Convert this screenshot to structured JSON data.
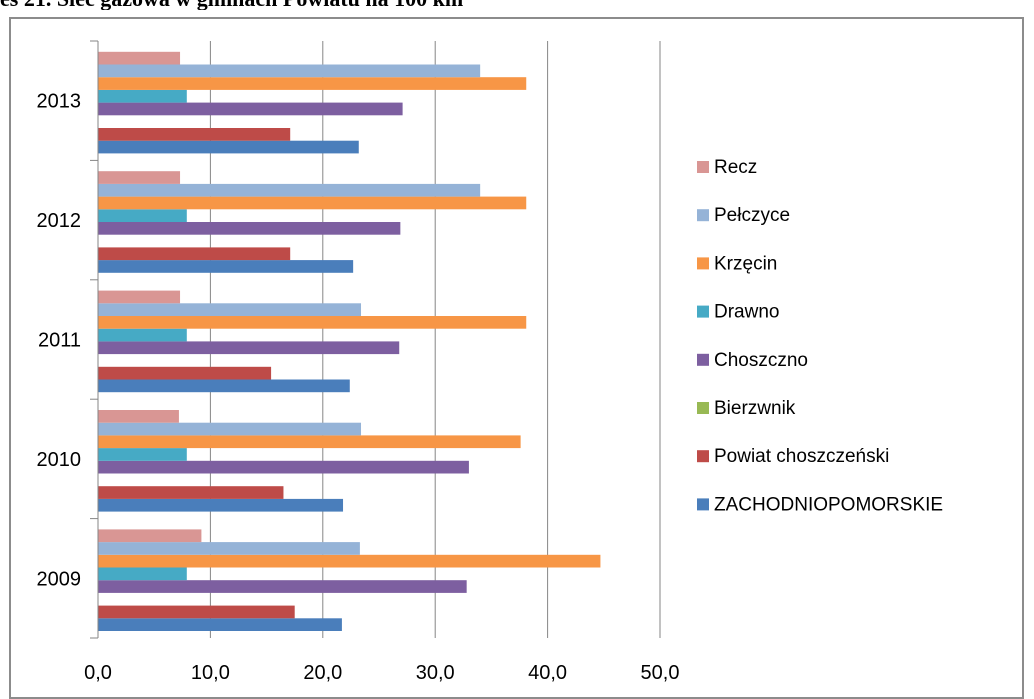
{
  "page_title": "es 21. Sieć gazowa w gminach Powiatu na 100 km",
  "chart_data": {
    "type": "bar",
    "orientation": "horizontal",
    "title": "es 21. Sieć gazowa w gminach Powiatu na 100 km",
    "categories": [
      "2009",
      "2010",
      "2011",
      "2012",
      "2013"
    ],
    "xlim": [
      0,
      50
    ],
    "x_ticks": [
      "0,0",
      "10,0",
      "20,0",
      "30,0",
      "40,0",
      "50,0"
    ],
    "grid": "vertical",
    "legend_position": "right",
    "series": [
      {
        "name": "ZACHODNIOPOMORSKIE",
        "color": "#4a7ebb",
        "values": [
          21.7,
          21.8,
          22.4,
          22.7,
          23.2
        ]
      },
      {
        "name": "Powiat choszczeński",
        "color": "#be4b48",
        "values": [
          17.5,
          16.5,
          15.4,
          17.1,
          17.1
        ]
      },
      {
        "name": "Bierzwnik",
        "color": "#98b954",
        "values": [
          0,
          0,
          0,
          0,
          0
        ]
      },
      {
        "name": "Choszczno",
        "color": "#7d5fa0",
        "values": [
          32.8,
          33.0,
          26.8,
          26.9,
          27.1
        ]
      },
      {
        "name": "Drawno",
        "color": "#46aac5",
        "values": [
          7.9,
          7.9,
          7.9,
          7.9,
          7.9
        ]
      },
      {
        "name": "Krzęcin",
        "color": "#f79646",
        "values": [
          44.7,
          37.6,
          38.1,
          38.1,
          38.1
        ]
      },
      {
        "name": "Pełczyce",
        "color": "#95b3d7",
        "values": [
          23.3,
          23.4,
          23.4,
          34.0,
          34.0
        ]
      },
      {
        "name": "Recz",
        "color": "#d99694",
        "values": [
          9.2,
          7.2,
          7.3,
          7.3,
          7.3
        ]
      }
    ]
  }
}
